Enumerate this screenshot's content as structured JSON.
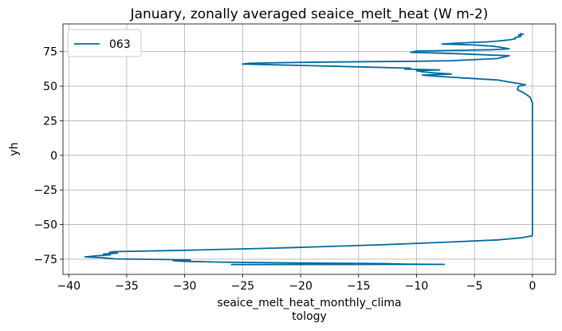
{
  "chart_data": {
    "type": "line",
    "title": "January, zonally averaged seaice_melt_heat (W m-2)",
    "xlabel_lines": [
      "seaice_melt_heat_monthly_clima",
      "tology"
    ],
    "ylabel": "yh",
    "xlim": [
      -40.5,
      2
    ],
    "ylim": [
      -86,
      95
    ],
    "xticks": [
      -40,
      -35,
      -30,
      -25,
      -20,
      -15,
      -10,
      -5,
      0
    ],
    "xtick_labels": [
      "−40",
      "−35",
      "−30",
      "−25",
      "−20",
      "−15",
      "−10",
      "−5",
      "0"
    ],
    "yticks": [
      -75,
      -50,
      -25,
      0,
      25,
      50,
      75
    ],
    "ytick_labels": [
      "−75",
      "−50",
      "−25",
      "0",
      "25",
      "50",
      "75"
    ],
    "grid": true,
    "legend_position": "top-left",
    "series": [
      {
        "name": "063",
        "color": "#00689f",
        "points": [
          [
            -26.0,
            -78.9
          ],
          [
            -7.6,
            -78.8
          ],
          [
            -11.0,
            -78.6
          ],
          [
            -12.8,
            -78.2
          ],
          [
            -20.0,
            -77.8
          ],
          [
            -27.0,
            -77.1
          ],
          [
            -30.0,
            -76.6
          ],
          [
            -31.0,
            -76.1
          ],
          [
            -29.5,
            -75.6
          ],
          [
            -31.5,
            -75.3
          ],
          [
            -36.0,
            -74.8
          ],
          [
            -37.0,
            -74.0
          ],
          [
            -38.6,
            -73.4
          ],
          [
            -38.0,
            -72.9
          ],
          [
            -37.3,
            -72.4
          ],
          [
            -36.4,
            -71.9
          ],
          [
            -37.0,
            -71.3
          ],
          [
            -35.8,
            -70.6
          ],
          [
            -36.5,
            -70.1
          ],
          [
            -36.0,
            -69.6
          ],
          [
            -30.0,
            -68.6
          ],
          [
            -22.0,
            -67.0
          ],
          [
            -13.0,
            -64.6
          ],
          [
            -7.0,
            -62.6
          ],
          [
            -3.0,
            -61.1
          ],
          [
            -1.0,
            -59.6
          ],
          [
            0.0,
            -58.1
          ],
          [
            0.0,
            -56.0
          ],
          [
            0.0,
            0.0
          ],
          [
            0.0,
            38.0
          ],
          [
            -0.2,
            42.0
          ],
          [
            -0.7,
            45.0
          ],
          [
            -1.3,
            47.5
          ],
          [
            -1.2,
            50.0
          ],
          [
            -0.6,
            51.0
          ],
          [
            -1.2,
            52.0
          ],
          [
            -2.0,
            53.0
          ],
          [
            -3.0,
            54.5
          ],
          [
            -6.0,
            56.0
          ],
          [
            -8.0,
            57.0
          ],
          [
            -9.5,
            58.0
          ],
          [
            -7.0,
            58.8
          ],
          [
            -8.5,
            59.6
          ],
          [
            -9.5,
            60.4
          ],
          [
            -10.0,
            61.2
          ],
          [
            -8.0,
            61.8
          ],
          [
            -11.0,
            62.4
          ],
          [
            -10.5,
            63.0
          ],
          [
            -15.0,
            64.0
          ],
          [
            -20.0,
            65.0
          ],
          [
            -25.0,
            66.0
          ],
          [
            -24.5,
            66.5
          ],
          [
            -22.0,
            67.0
          ],
          [
            -17.0,
            67.5
          ],
          [
            -10.0,
            68.0
          ],
          [
            -7.0,
            68.4
          ],
          [
            -3.0,
            70.0
          ],
          [
            -2.0,
            72.0
          ],
          [
            -5.0,
            73.0
          ],
          [
            -7.5,
            73.8
          ],
          [
            -10.5,
            74.5
          ],
          [
            -10.0,
            75.4
          ],
          [
            -6.0,
            76.0
          ],
          [
            -3.5,
            76.4
          ],
          [
            -2.0,
            77.0
          ],
          [
            -2.8,
            78.2
          ],
          [
            -3.5,
            79.0
          ],
          [
            -5.0,
            79.8
          ],
          [
            -7.8,
            80.5
          ],
          [
            -5.5,
            81.5
          ],
          [
            -4.0,
            82.0
          ],
          [
            -3.0,
            82.6
          ],
          [
            -2.0,
            83.5
          ],
          [
            -1.5,
            84.2
          ],
          [
            -1.5,
            85.0
          ],
          [
            -1.0,
            86.0
          ],
          [
            -1.2,
            86.8
          ],
          [
            -0.8,
            87.5
          ],
          [
            -1.1,
            88.0
          ]
        ]
      }
    ]
  }
}
